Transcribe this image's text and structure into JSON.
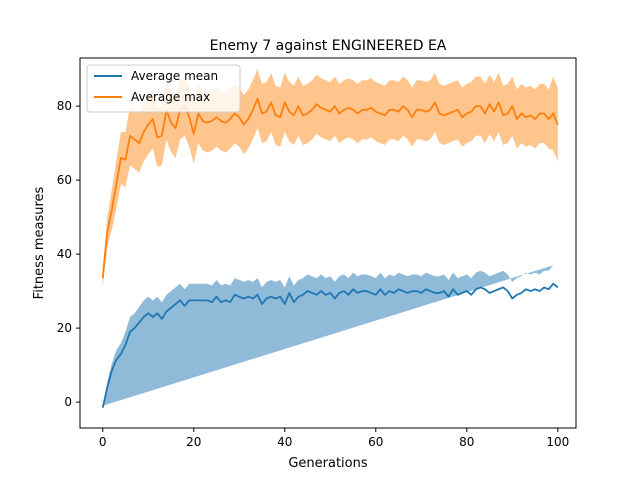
{
  "chart_data": {
    "type": "line",
    "title": "Enemy 7 against ENGINEERED EA",
    "xlabel": "Generations",
    "ylabel": "Fitness measures",
    "xlim": [
      -5,
      104
    ],
    "ylim": [
      -7,
      93
    ],
    "xticks": [
      0,
      20,
      40,
      60,
      80,
      100
    ],
    "yticks": [
      0,
      20,
      40,
      60,
      80
    ],
    "legend_position": "upper-left",
    "grid": false,
    "series": [
      {
        "name": "Average mean",
        "color": "#1f77b4",
        "band_color": "#1f77b4",
        "x_start": 0,
        "mean": [
          -1.5,
          4,
          8.5,
          11.5,
          13,
          15.5,
          19,
          20,
          21.5,
          23,
          24,
          23,
          24,
          22.5,
          24.5,
          25.5,
          26.5,
          27.5,
          26,
          27.5,
          27.5,
          27.5,
          27.5,
          27.5,
          27,
          28.5,
          27,
          27.5,
          27,
          29,
          28.5,
          28,
          28.5,
          28,
          29,
          26.5,
          28,
          28.5,
          28,
          28.5,
          26.5,
          29.5,
          27,
          28.5,
          29,
          30,
          29.5,
          29,
          30,
          29,
          29.5,
          28,
          29.5,
          30,
          29,
          30.5,
          29.5,
          30,
          30,
          29.5,
          29,
          30.5,
          29,
          30,
          29.5,
          30.5,
          30,
          29.5,
          30,
          30,
          29.5,
          30.5,
          30,
          29.5,
          29.5,
          30,
          28.5,
          30.5,
          29,
          29.5,
          30,
          29,
          30.5,
          31,
          30.5,
          29.5,
          30,
          30.5,
          31,
          30,
          28,
          29,
          29.5,
          30.5,
          30,
          30.5,
          30,
          31,
          30.5,
          32,
          31
        ],
        "spread": [
          0.5,
          1.5,
          2,
          2.5,
          3,
          3.5,
          4,
          4,
          4.2,
          4.5,
          4.5,
          4.5,
          4.5,
          4.5,
          4.5,
          4.5,
          4.5,
          4.5,
          4.5,
          4.5,
          4.5,
          4.5,
          4.5,
          4.5,
          4.5,
          4.5,
          4.5,
          4.5,
          4.5,
          4.5,
          4.5,
          4.5,
          4.5,
          4.5,
          4.5,
          4.5,
          4.5,
          4.5,
          4.5,
          4.5,
          4.5,
          4.5,
          4.5,
          4.5,
          4.5,
          4.5,
          4.5,
          4.5,
          4.5,
          4.5,
          4.5,
          4.5,
          4.5,
          4.5,
          4.5,
          4.5,
          4.5,
          4.5,
          4.5,
          4.5,
          4.5,
          4.5,
          4.5,
          4.5,
          4.5,
          4.5,
          4.5,
          4.5,
          4.5,
          4.5,
          4.5,
          4.5,
          4.5,
          4.5,
          4.5,
          4.5,
          4.5,
          4.5,
          4.5,
          4.5,
          4.5,
          4.5,
          4.5,
          4.5,
          4.5,
          4.5,
          4.5,
          4.5,
          4.5,
          4.5,
          4.5,
          4.5,
          4.5,
          4.5,
          4.5,
          4.5,
          4.5,
          4.5,
          5,
          5
        ]
      },
      {
        "name": "Average max",
        "color": "#ff7f0e",
        "band_color": "#ffbb78",
        "x_start": 0,
        "mean": [
          33.5,
          46,
          52,
          59,
          66,
          65.5,
          72,
          71,
          70,
          73,
          75,
          76.5,
          71.5,
          72,
          79,
          75.5,
          74,
          79,
          80,
          77,
          72.5,
          78,
          76,
          75.5,
          76,
          77,
          76,
          75.5,
          76.5,
          78,
          77,
          75,
          76.5,
          79,
          82,
          78,
          78.5,
          81,
          77.5,
          77,
          81,
          78.5,
          77.5,
          80,
          77.5,
          78,
          79,
          80.5,
          79.5,
          79,
          78.5,
          80,
          78,
          79,
          79.5,
          79,
          78,
          79,
          79,
          79.5,
          78.5,
          78,
          77.5,
          79,
          79,
          78.5,
          80,
          79,
          77,
          79,
          79,
          78.5,
          79,
          81,
          78,
          77.5,
          78,
          78.5,
          79,
          77,
          78,
          78.5,
          80,
          80,
          78,
          80.5,
          78.5,
          81,
          77.5,
          78,
          80,
          76.5,
          78,
          77,
          77.5,
          76.5,
          78,
          78,
          76.5,
          78,
          75
        ],
        "spread": [
          2.5,
          4,
          5.5,
          6.5,
          7,
          7.5,
          8,
          8,
          8,
          8,
          8,
          8,
          8,
          8,
          8,
          8,
          8,
          8,
          8,
          8,
          8,
          8,
          8,
          8,
          8,
          8,
          8,
          8,
          8,
          8,
          8,
          8,
          8,
          8,
          8,
          8,
          8,
          8,
          8,
          8,
          8,
          8,
          8,
          8,
          8,
          8,
          8,
          8,
          8,
          8,
          8,
          8,
          8,
          8,
          8,
          8,
          8,
          8,
          8,
          8,
          8,
          8,
          8,
          8,
          8,
          8,
          8,
          8,
          8,
          8,
          8,
          8,
          8,
          8,
          8,
          8,
          8,
          8,
          8,
          8,
          8,
          8,
          8,
          8,
          8,
          8,
          8,
          8,
          8,
          8,
          8,
          8,
          8,
          8,
          8,
          8,
          8,
          8,
          8,
          10,
          10
        ]
      }
    ]
  }
}
